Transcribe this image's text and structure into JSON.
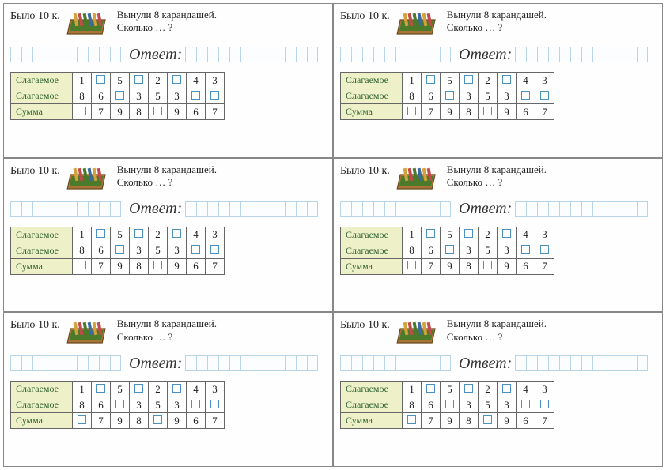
{
  "card": {
    "was_label": "Было",
    "was_count": "10",
    "was_unit": "к.",
    "question_line1": "Вынули 8 карандашей.",
    "question_line2": "Сколько … ?",
    "answer_label": "Ответ:",
    "answer_grid_left_cells": 10,
    "answer_grid_right_cells": 12,
    "table": {
      "rows": [
        {
          "label": "Слагаемое",
          "cells": [
            "1",
            "",
            "5",
            "",
            "2",
            "",
            "4",
            "3"
          ]
        },
        {
          "label": "Слагаемое",
          "cells": [
            "8",
            "6",
            "",
            "3",
            "5",
            "3",
            "",
            ""
          ]
        },
        {
          "label": "Сумма",
          "cells": [
            "",
            "7",
            "9",
            "8",
            "",
            "9",
            "6",
            "7"
          ]
        }
      ]
    },
    "colors": {
      "row_header_bg": "#eef0c8",
      "row_header_text": "#336633",
      "cell_border": "#666666",
      "grid_cell_border": "#b8d4e8",
      "blank_box_border": "#4a90c2",
      "text": "#222222"
    },
    "pencil_box_svg": {
      "box_fill": "#a87438",
      "box_stroke": "#6b4a1f",
      "inner_fill": "#4a7a2a",
      "pencil_colors": [
        "#d4a23a",
        "#c24a4a",
        "#4a7a2a",
        "#3a6aa2",
        "#d4a23a",
        "#c24a4a"
      ]
    }
  },
  "layout": {
    "grid_cols": 2,
    "grid_rows": 3
  }
}
